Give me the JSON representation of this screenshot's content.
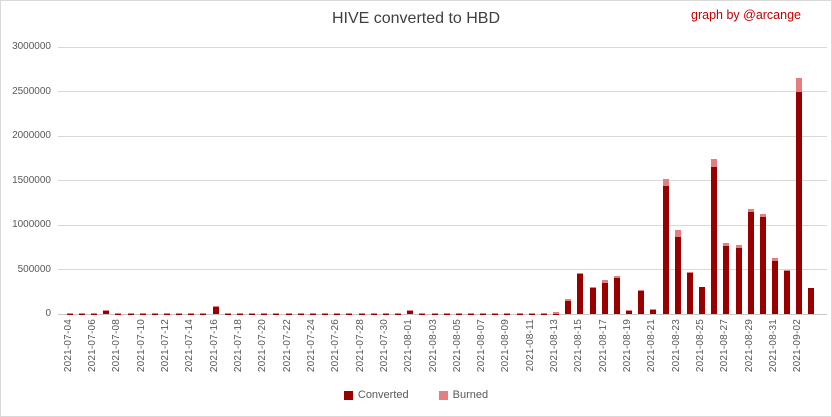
{
  "title": "HIVE converted to HBD",
  "credit": "graph by @arcange",
  "colors": {
    "converted": "#980000",
    "burned": "#e57e7e",
    "gridline": "#d9d9d9",
    "axis_text": "#595959",
    "title_text": "#404040",
    "credit_text": "#c00000"
  },
  "chart_data": {
    "type": "bar",
    "stacked": true,
    "title": "HIVE converted to HBD",
    "xlabel": "",
    "ylabel": "",
    "ylim": [
      0,
      3000000
    ],
    "y_ticks": [
      "0",
      "500000",
      "1000000",
      "1500000",
      "2000000",
      "2500000",
      "3000000"
    ],
    "x_label_every": 2,
    "grid": true,
    "legend_position": "bottom",
    "categories": [
      "2021-07-04",
      "2021-07-05",
      "2021-07-06",
      "2021-07-07",
      "2021-07-08",
      "2021-07-09",
      "2021-07-10",
      "2021-07-11",
      "2021-07-12",
      "2021-07-13",
      "2021-07-14",
      "2021-07-15",
      "2021-07-16",
      "2021-07-17",
      "2021-07-18",
      "2021-07-19",
      "2021-07-20",
      "2021-07-21",
      "2021-07-22",
      "2021-07-23",
      "2021-07-24",
      "2021-07-25",
      "2021-07-26",
      "2021-07-27",
      "2021-07-28",
      "2021-07-29",
      "2021-07-30",
      "2021-07-31",
      "2021-08-01",
      "2021-08-02",
      "2021-08-03",
      "2021-08-04",
      "2021-08-05",
      "2021-08-06",
      "2021-08-07",
      "2021-08-08",
      "2021-08-09",
      "2021-08-10",
      "2021-08-11",
      "2021-08-12",
      "2021-08-13",
      "2021-08-14",
      "2021-08-15",
      "2021-08-16",
      "2021-08-17",
      "2021-08-18",
      "2021-08-19",
      "2021-08-20",
      "2021-08-21",
      "2021-08-22",
      "2021-08-23",
      "2021-08-24",
      "2021-08-25",
      "2021-08-26",
      "2021-08-27",
      "2021-08-28",
      "2021-08-29",
      "2021-08-30",
      "2021-08-31",
      "2021-09-01",
      "2021-09-02",
      "2021-09-03"
    ],
    "series": [
      {
        "name": "Converted",
        "color": "#980000",
        "values": [
          3000,
          2000,
          3000,
          35000,
          3000,
          2000,
          3000,
          2000,
          3000,
          2000,
          3000,
          3000,
          75000,
          3000,
          2000,
          3000,
          3000,
          2000,
          3000,
          3000,
          2000,
          3000,
          3000,
          2000,
          3000,
          3000,
          3000,
          2000,
          30000,
          3000,
          3000,
          2000,
          3000,
          3000,
          2000,
          3000,
          3000,
          3000,
          3000,
          3000,
          5000,
          150000,
          450000,
          290000,
          350000,
          410000,
          30000,
          255000,
          50000,
          1440000,
          870000,
          460000,
          300000,
          1650000,
          760000,
          745000,
          1150000,
          1090000,
          600000,
          480000,
          2490000,
          290000
        ]
      },
      {
        "name": "Burned",
        "color": "#e57e7e",
        "values": [
          12000,
          10000,
          12000,
          10000,
          12000,
          10000,
          12000,
          10000,
          12000,
          10000,
          12000,
          12000,
          10000,
          12000,
          10000,
          12000,
          12000,
          10000,
          12000,
          12000,
          10000,
          12000,
          12000,
          10000,
          12000,
          12000,
          12000,
          10000,
          14000,
          12000,
          12000,
          10000,
          12000,
          12000,
          10000,
          12000,
          12000,
          12000,
          12000,
          12000,
          18000,
          15000,
          15000,
          15000,
          30000,
          15000,
          10000,
          10000,
          8000,
          75000,
          75000,
          12000,
          8000,
          95000,
          40000,
          35000,
          28000,
          38000,
          35000,
          18000,
          160000,
          8000
        ]
      }
    ]
  }
}
